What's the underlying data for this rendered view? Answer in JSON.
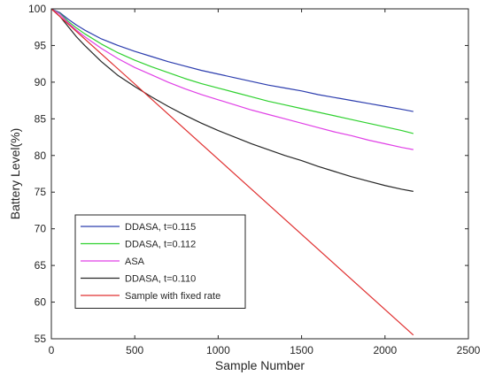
{
  "chart_data": {
    "type": "line",
    "xlabel": "Sample Number",
    "ylabel": "Battery Level(%)",
    "xlim": [
      0,
      2500
    ],
    "ylim": [
      55,
      100
    ],
    "xticks": [
      0,
      500,
      1000,
      1500,
      2000,
      2500
    ],
    "yticks": [
      55,
      60,
      65,
      70,
      75,
      80,
      85,
      90,
      95,
      100
    ],
    "grid": false,
    "legend_position": "bottom-left",
    "series": [
      {
        "name": "DDASA, t=0.115",
        "color": "#2c3dae",
        "x": [
          0,
          50,
          100,
          150,
          200,
          300,
          400,
          500,
          600,
          700,
          800,
          900,
          1000,
          1100,
          1200,
          1300,
          1400,
          1500,
          1600,
          1700,
          1800,
          1900,
          2000,
          2100,
          2170
        ],
        "y": [
          100,
          99.5,
          98.6,
          97.8,
          97.1,
          95.9,
          95.0,
          94.2,
          93.5,
          92.8,
          92.2,
          91.6,
          91.1,
          90.6,
          90.1,
          89.6,
          89.2,
          88.8,
          88.3,
          87.9,
          87.5,
          87.1,
          86.7,
          86.3,
          86.0
        ]
      },
      {
        "name": "DDASA, t=0.112",
        "color": "#2fd12f",
        "x": [
          0,
          50,
          100,
          150,
          200,
          300,
          400,
          500,
          600,
          700,
          800,
          900,
          1000,
          1100,
          1200,
          1300,
          1400,
          1500,
          1600,
          1700,
          1800,
          1900,
          2000,
          2100,
          2170
        ],
        "y": [
          100,
          99.4,
          98.3,
          97.4,
          96.6,
          95.2,
          94.0,
          93.0,
          92.1,
          91.3,
          90.5,
          89.8,
          89.2,
          88.6,
          88.0,
          87.4,
          86.9,
          86.4,
          85.9,
          85.4,
          84.9,
          84.4,
          83.9,
          83.4,
          83.0
        ]
      },
      {
        "name": "ASA",
        "color": "#e040e6",
        "x": [
          0,
          50,
          100,
          150,
          200,
          300,
          400,
          500,
          600,
          700,
          800,
          900,
          1000,
          1100,
          1200,
          1300,
          1400,
          1500,
          1600,
          1700,
          1800,
          1900,
          2000,
          2100,
          2170
        ],
        "y": [
          100,
          99.3,
          98.1,
          97.1,
          96.2,
          94.6,
          93.2,
          92.0,
          91.0,
          90.0,
          89.1,
          88.3,
          87.6,
          86.9,
          86.2,
          85.6,
          85.0,
          84.4,
          83.8,
          83.2,
          82.7,
          82.1,
          81.6,
          81.1,
          80.8
        ]
      },
      {
        "name": "DDASA, t=0.110",
        "color": "#262626",
        "x": [
          0,
          50,
          100,
          150,
          200,
          300,
          400,
          500,
          600,
          700,
          800,
          900,
          1000,
          1100,
          1200,
          1300,
          1400,
          1500,
          1600,
          1700,
          1800,
          1900,
          2000,
          2100,
          2170
        ],
        "y": [
          100,
          99.0,
          97.6,
          96.2,
          95.0,
          92.8,
          90.9,
          89.4,
          88.0,
          86.7,
          85.5,
          84.4,
          83.4,
          82.5,
          81.6,
          80.8,
          80.0,
          79.3,
          78.5,
          77.8,
          77.1,
          76.5,
          75.9,
          75.4,
          75.1
        ]
      },
      {
        "name": "Sample with fixed rate",
        "color": "#e03030",
        "x": [
          0,
          2170
        ],
        "y": [
          100,
          55.5
        ]
      }
    ]
  }
}
